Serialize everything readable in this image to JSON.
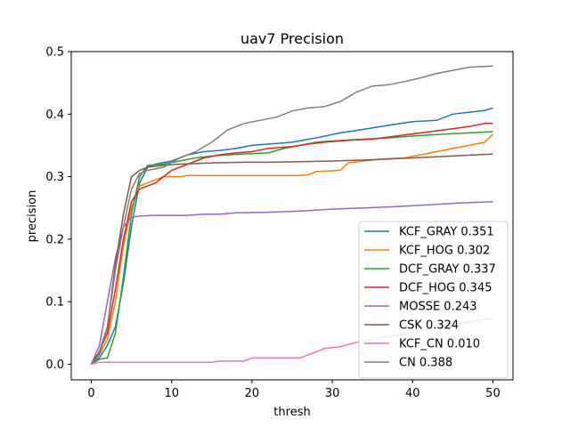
{
  "chart_data": {
    "type": "line",
    "title": "uav7 Precision",
    "xlabel": "thresh",
    "ylabel": "precision",
    "xlim": [
      -2.5,
      52.5
    ],
    "ylim": [
      -0.025,
      0.5
    ],
    "xticks": [
      0,
      10,
      20,
      30,
      40,
      50
    ],
    "yticks": [
      0.0,
      0.1,
      0.2,
      0.3,
      0.4,
      0.5
    ],
    "xtick_labels": [
      "0",
      "10",
      "20",
      "30",
      "40",
      "50"
    ],
    "ytick_labels": [
      "0.0",
      "0.1",
      "0.2",
      "0.3",
      "0.4",
      "0.5"
    ],
    "grid": false,
    "legend_position": "lower-right",
    "series": [
      {
        "name": "KCF_GRAY 0.351",
        "color": "#1f77b4",
        "points": [
          [
            0,
            0
          ],
          [
            1,
            0.01
          ],
          [
            2,
            0.03
          ],
          [
            3,
            0.06
          ],
          [
            4,
            0.13
          ],
          [
            5,
            0.22
          ],
          [
            6,
            0.29
          ],
          [
            7,
            0.315
          ],
          [
            8,
            0.32
          ],
          [
            10,
            0.325
          ],
          [
            12,
            0.335
          ],
          [
            14,
            0.34
          ],
          [
            16,
            0.342
          ],
          [
            18,
            0.345
          ],
          [
            20,
            0.35
          ],
          [
            22,
            0.352
          ],
          [
            25,
            0.355
          ],
          [
            28,
            0.362
          ],
          [
            31,
            0.37
          ],
          [
            34,
            0.376
          ],
          [
            37,
            0.382
          ],
          [
            40,
            0.388
          ],
          [
            43,
            0.39
          ],
          [
            45,
            0.4
          ],
          [
            47,
            0.403
          ],
          [
            49,
            0.406
          ],
          [
            50,
            0.41
          ]
        ]
      },
      {
        "name": "KCF_HOG 0.302",
        "color": "#ff7f0e",
        "points": [
          [
            0,
            0
          ],
          [
            1,
            0.015
          ],
          [
            2,
            0.04
          ],
          [
            3,
            0.1
          ],
          [
            4,
            0.19
          ],
          [
            5,
            0.25
          ],
          [
            6,
            0.285
          ],
          [
            7,
            0.29
          ],
          [
            8,
            0.295
          ],
          [
            9,
            0.3
          ],
          [
            11,
            0.3
          ],
          [
            12,
            0.302
          ],
          [
            26,
            0.302
          ],
          [
            27,
            0.303
          ],
          [
            28,
            0.308
          ],
          [
            31,
            0.31
          ],
          [
            32,
            0.322
          ],
          [
            34,
            0.325
          ],
          [
            36,
            0.328
          ],
          [
            39,
            0.33
          ],
          [
            41,
            0.335
          ],
          [
            43,
            0.34
          ],
          [
            45,
            0.345
          ],
          [
            47,
            0.35
          ],
          [
            49,
            0.355
          ],
          [
            50,
            0.368
          ]
        ]
      },
      {
        "name": "DCF_GRAY 0.337",
        "color": "#2ca02c",
        "points": [
          [
            0,
            0
          ],
          [
            1,
            0.008
          ],
          [
            2,
            0.01
          ],
          [
            3,
            0.05
          ],
          [
            4,
            0.14
          ],
          [
            5,
            0.24
          ],
          [
            6,
            0.3
          ],
          [
            7,
            0.318
          ],
          [
            9,
            0.32
          ],
          [
            11,
            0.325
          ],
          [
            13,
            0.33
          ],
          [
            15,
            0.333
          ],
          [
            17,
            0.335
          ],
          [
            22,
            0.338
          ],
          [
            24,
            0.345
          ],
          [
            26,
            0.35
          ],
          [
            28,
            0.355
          ],
          [
            30,
            0.357
          ],
          [
            34,
            0.36
          ],
          [
            37,
            0.362
          ],
          [
            40,
            0.365
          ],
          [
            44,
            0.368
          ],
          [
            47,
            0.37
          ],
          [
            50,
            0.372
          ]
        ]
      },
      {
        "name": "DCF_HOG 0.345",
        "color": "#d62728",
        "points": [
          [
            0,
            0
          ],
          [
            1,
            0.02
          ],
          [
            2,
            0.05
          ],
          [
            3,
            0.12
          ],
          [
            4,
            0.2
          ],
          [
            5,
            0.26
          ],
          [
            6,
            0.28
          ],
          [
            7,
            0.285
          ],
          [
            8,
            0.29
          ],
          [
            9,
            0.3
          ],
          [
            10,
            0.31
          ],
          [
            12,
            0.32
          ],
          [
            14,
            0.33
          ],
          [
            16,
            0.335
          ],
          [
            18,
            0.338
          ],
          [
            20,
            0.34
          ],
          [
            22,
            0.345
          ],
          [
            25,
            0.348
          ],
          [
            27,
            0.352
          ],
          [
            29,
            0.355
          ],
          [
            32,
            0.358
          ],
          [
            35,
            0.36
          ],
          [
            38,
            0.365
          ],
          [
            41,
            0.37
          ],
          [
            44,
            0.375
          ],
          [
            47,
            0.38
          ],
          [
            49,
            0.385
          ],
          [
            50,
            0.385
          ]
        ]
      },
      {
        "name": "MOSSE 0.243",
        "color": "#9467bd",
        "points": [
          [
            0,
            0
          ],
          [
            1,
            0.03
          ],
          [
            2,
            0.1
          ],
          [
            3,
            0.17
          ],
          [
            4,
            0.22
          ],
          [
            5,
            0.235
          ],
          [
            6,
            0.237
          ],
          [
            8,
            0.238
          ],
          [
            12,
            0.238
          ],
          [
            14,
            0.24
          ],
          [
            16,
            0.24
          ],
          [
            18,
            0.242
          ],
          [
            22,
            0.243
          ],
          [
            26,
            0.245
          ],
          [
            30,
            0.248
          ],
          [
            34,
            0.25
          ],
          [
            38,
            0.252
          ],
          [
            42,
            0.255
          ],
          [
            46,
            0.258
          ],
          [
            50,
            0.26
          ]
        ]
      },
      {
        "name": "CSK 0.324",
        "color": "#8c564b",
        "points": [
          [
            0,
            0
          ],
          [
            1,
            0.02
          ],
          [
            2,
            0.06
          ],
          [
            3,
            0.16
          ],
          [
            4,
            0.24
          ],
          [
            5,
            0.3
          ],
          [
            6,
            0.31
          ],
          [
            7,
            0.315
          ],
          [
            9,
            0.318
          ],
          [
            11,
            0.32
          ],
          [
            15,
            0.322
          ],
          [
            19,
            0.323
          ],
          [
            22,
            0.323
          ],
          [
            26,
            0.324
          ],
          [
            30,
            0.325
          ],
          [
            35,
            0.327
          ],
          [
            40,
            0.33
          ],
          [
            45,
            0.333
          ],
          [
            48,
            0.335
          ],
          [
            50,
            0.336
          ]
        ]
      },
      {
        "name": "KCF_CN 0.010",
        "color": "#e377c2",
        "points": [
          [
            0,
            0
          ],
          [
            1,
            0.003
          ],
          [
            5,
            0.003
          ],
          [
            10,
            0.003
          ],
          [
            15,
            0.003
          ],
          [
            16,
            0.005
          ],
          [
            19,
            0.005
          ],
          [
            20,
            0.01
          ],
          [
            26,
            0.01
          ],
          [
            27,
            0.015
          ],
          [
            29,
            0.025
          ],
          [
            31,
            0.028
          ],
          [
            33,
            0.035
          ],
          [
            35,
            0.04
          ],
          [
            37,
            0.045
          ],
          [
            40,
            0.05
          ],
          [
            43,
            0.06
          ],
          [
            46,
            0.065
          ],
          [
            49,
            0.072
          ],
          [
            50,
            0.073
          ]
        ]
      },
      {
        "name": "CN 0.388",
        "color": "#7f7f7f",
        "points": [
          [
            0,
            0
          ],
          [
            1,
            0.015
          ],
          [
            2,
            0.06
          ],
          [
            3,
            0.15
          ],
          [
            4,
            0.22
          ],
          [
            5,
            0.28
          ],
          [
            6,
            0.305
          ],
          [
            7,
            0.31
          ],
          [
            9,
            0.315
          ],
          [
            11,
            0.33
          ],
          [
            13,
            0.34
          ],
          [
            15,
            0.355
          ],
          [
            17,
            0.375
          ],
          [
            19,
            0.385
          ],
          [
            21,
            0.39
          ],
          [
            23,
            0.395
          ],
          [
            25,
            0.405
          ],
          [
            27,
            0.41
          ],
          [
            29,
            0.412
          ],
          [
            31,
            0.42
          ],
          [
            33,
            0.435
          ],
          [
            35,
            0.445
          ],
          [
            37,
            0.447
          ],
          [
            39,
            0.452
          ],
          [
            41,
            0.458
          ],
          [
            43,
            0.465
          ],
          [
            45,
            0.47
          ],
          [
            47,
            0.475
          ],
          [
            50,
            0.477
          ]
        ]
      }
    ]
  }
}
